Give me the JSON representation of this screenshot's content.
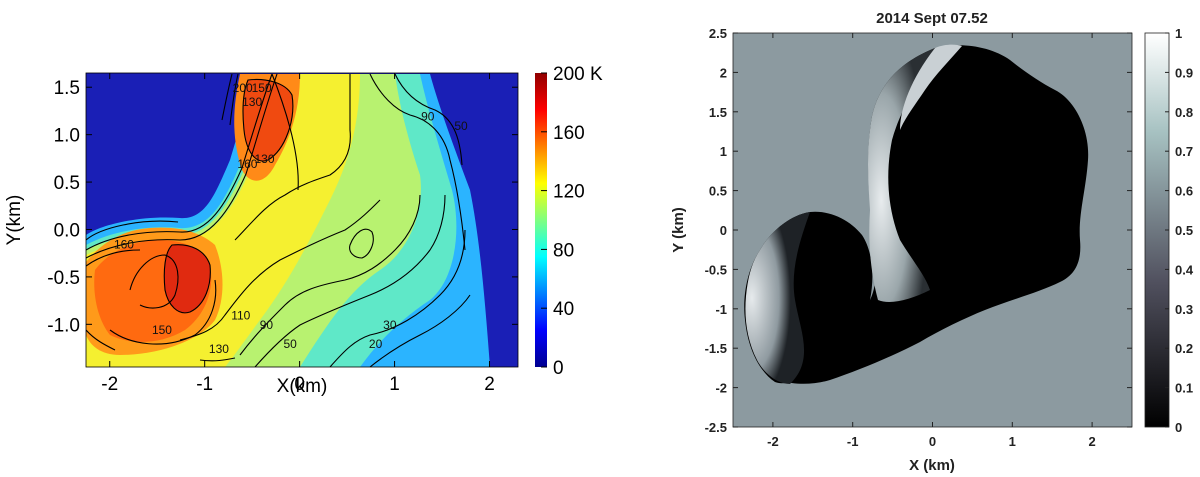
{
  "chart_data": [
    {
      "type": "heatmap",
      "title": "",
      "xlabel": "X(km)",
      "ylabel": "Y(km)",
      "xlim": [
        -2.25,
        2.3
      ],
      "ylim": [
        -1.45,
        1.65
      ],
      "xticks": [
        "-2",
        "-1",
        "0",
        "1",
        "2"
      ],
      "xtick_values": [
        -2,
        -1,
        0,
        1,
        2
      ],
      "yticks": [
        "1.5",
        "1.0",
        "0.5",
        "0.0",
        "-0.5",
        "-1.0"
      ],
      "ytick_values": [
        1.5,
        1.0,
        0.5,
        0.0,
        -0.5,
        -1.0
      ],
      "colorbar": {
        "range": [
          0,
          200
        ],
        "ticks": [
          "200 K",
          "160",
          "120",
          "80",
          "40",
          "0"
        ],
        "tick_values": [
          200,
          160,
          120,
          80,
          40,
          0
        ],
        "colormap": "jet"
      },
      "contour_labels": [
        {
          "text": "200",
          "x": -0.6,
          "y": 1.45
        },
        {
          "text": "130",
          "x": -0.5,
          "y": 1.3
        },
        {
          "text": "150",
          "x": -0.4,
          "y": 1.45
        },
        {
          "text": "160",
          "x": -0.55,
          "y": 0.65
        },
        {
          "text": "130",
          "x": -0.37,
          "y": 0.7
        },
        {
          "text": "90",
          "x": 1.35,
          "y": 1.15
        },
        {
          "text": "50",
          "x": 1.7,
          "y": 1.05
        },
        {
          "text": "160",
          "x": -1.85,
          "y": -0.2
        },
        {
          "text": "150",
          "x": -1.45,
          "y": -1.1
        },
        {
          "text": "130",
          "x": -0.85,
          "y": -1.3
        },
        {
          "text": "110",
          "x": -0.62,
          "y": -0.95
        },
        {
          "text": "90",
          "x": -0.35,
          "y": -1.05
        },
        {
          "text": "50",
          "x": -0.1,
          "y": -1.25
        },
        {
          "text": "30",
          "x": 0.95,
          "y": -1.05
        },
        {
          "text": "20",
          "x": 0.8,
          "y": -1.25
        }
      ],
      "colors": {
        "background": "#1a1ab3",
        "hot": "#b40000"
      }
    },
    {
      "type": "heatmap",
      "title": "2014 Sept 07.52",
      "xlabel": "X (km)",
      "ylabel": "Y (km)",
      "xlim": [
        -2.5,
        2.5
      ],
      "ylim": [
        -2.5,
        2.5
      ],
      "xticks": [
        "-2",
        "-1",
        "0",
        "1",
        "2"
      ],
      "xtick_values": [
        -2,
        -1,
        0,
        1,
        2
      ],
      "yticks": [
        "2.5",
        "2",
        "1.5",
        "1",
        "0.5",
        "0",
        "-0.5",
        "-1",
        "-1.5",
        "-2",
        "-2.5"
      ],
      "ytick_values": [
        2.5,
        2,
        1.5,
        1,
        0.5,
        0,
        -0.5,
        -1,
        -1.5,
        -2,
        -2.5
      ],
      "colorbar": {
        "range": [
          0,
          1
        ],
        "ticks": [
          "1",
          "0.9",
          "0.8",
          "0.7",
          "0.6",
          "0.5",
          "0.4",
          "0.3",
          "0.2",
          "0.1",
          "0"
        ],
        "tick_values": [
          1,
          0.9,
          0.8,
          0.7,
          0.6,
          0.5,
          0.4,
          0.3,
          0.2,
          0.1,
          0
        ],
        "colormap": "bone"
      },
      "colors": {
        "background": "#8c9aa0",
        "shadow": "#000000",
        "lit": "#e0e4e8"
      }
    }
  ]
}
